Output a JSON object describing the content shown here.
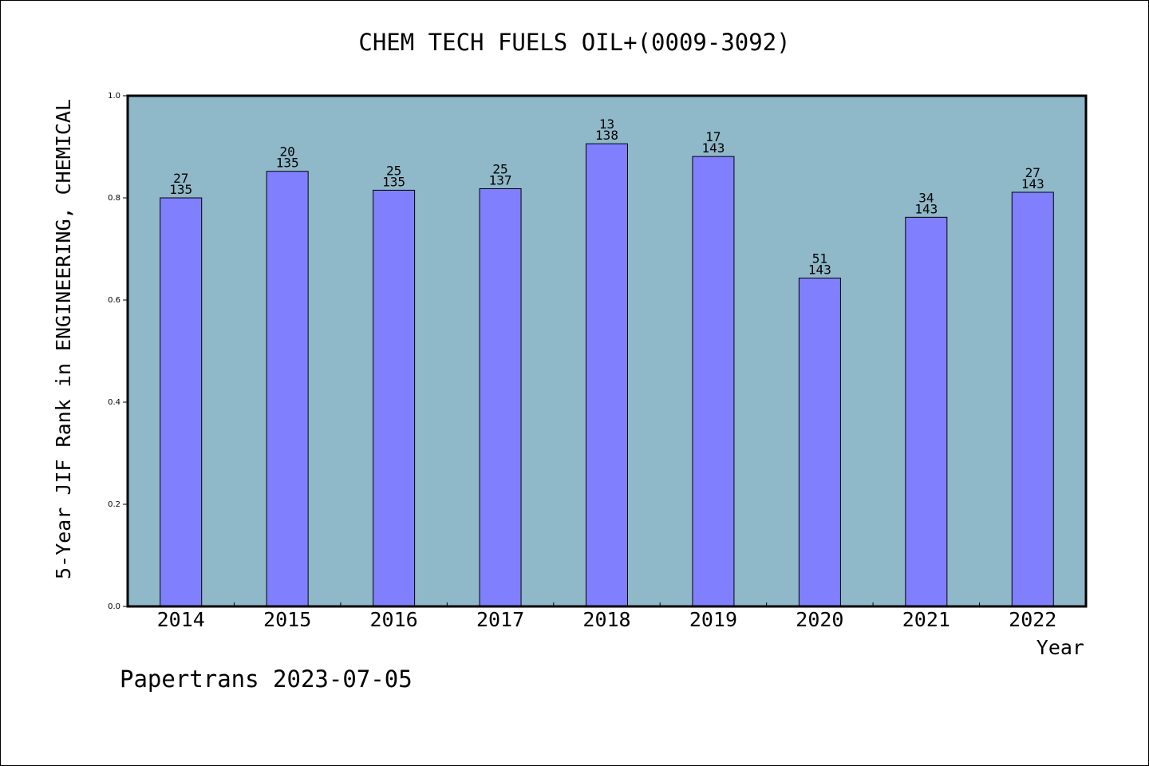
{
  "title": "CHEM TECH FUELS OIL+(0009-3092)",
  "footer": "Papertrans 2023-07-05",
  "colors": {
    "plot_background": "#8fb8c8",
    "bar_fill": "#8080ff",
    "bar_stroke": "#000000",
    "text": "#000000"
  },
  "chart_data": {
    "type": "bar",
    "title": "CHEM TECH FUELS OIL+(0009-3092)",
    "xlabel": "Year",
    "ylabel": "5-Year JIF Rank in ENGINEERING, CHEMICAL",
    "categories": [
      "2014",
      "2015",
      "2016",
      "2017",
      "2018",
      "2019",
      "2020",
      "2021",
      "2022"
    ],
    "values": [
      0.8,
      0.852,
      0.815,
      0.818,
      0.906,
      0.881,
      0.643,
      0.762,
      0.811
    ],
    "rank": [
      "27",
      "20",
      "25",
      "25",
      "13",
      "17",
      "51",
      "34",
      "27"
    ],
    "total": [
      "135",
      "135",
      "135",
      "137",
      "138",
      "143",
      "143",
      "143",
      "143"
    ],
    "ylim": [
      0,
      1.0
    ],
    "yticks": [
      0.0,
      0.2,
      0.4,
      0.6,
      0.8,
      1.0
    ],
    "ytick_labels": [
      "0.0",
      "0.2",
      "0.4",
      "0.6",
      "0.8",
      "1.0"
    ],
    "grid": false,
    "legend": "none"
  }
}
